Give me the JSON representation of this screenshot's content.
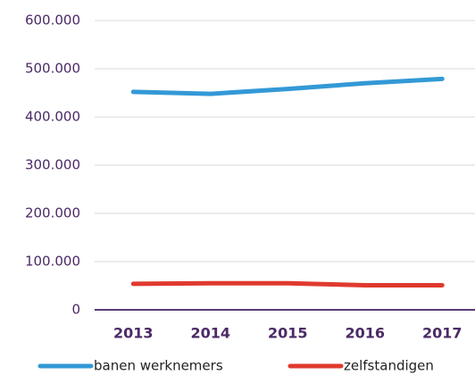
{
  "chart_data": {
    "type": "line",
    "categories": [
      "2013",
      "2014",
      "2015",
      "2016",
      "2017"
    ],
    "series": [
      {
        "name": "banen werknemers",
        "color": "#3399d6",
        "values": [
          452000,
          448000,
          458000,
          470000,
          479000
        ]
      },
      {
        "name": "zelfstandigen",
        "color": "#e03a2f",
        "values": [
          54000,
          55000,
          55000,
          51000,
          51000
        ]
      }
    ],
    "ylim": [
      0,
      600000
    ],
    "yticks": [
      0,
      {
        "value": 100000,
        "label": "100.000"
      },
      {
        "value": 200000,
        "label": "200.000"
      },
      {
        "value": 300000,
        "label": "300.000"
      },
      {
        "value": 400000,
        "label": "400.000"
      },
      {
        "value": 500000,
        "label": "500.000"
      },
      {
        "value": 600000,
        "label": "600.000"
      }
    ],
    "grid": true,
    "legend": "bottom"
  }
}
